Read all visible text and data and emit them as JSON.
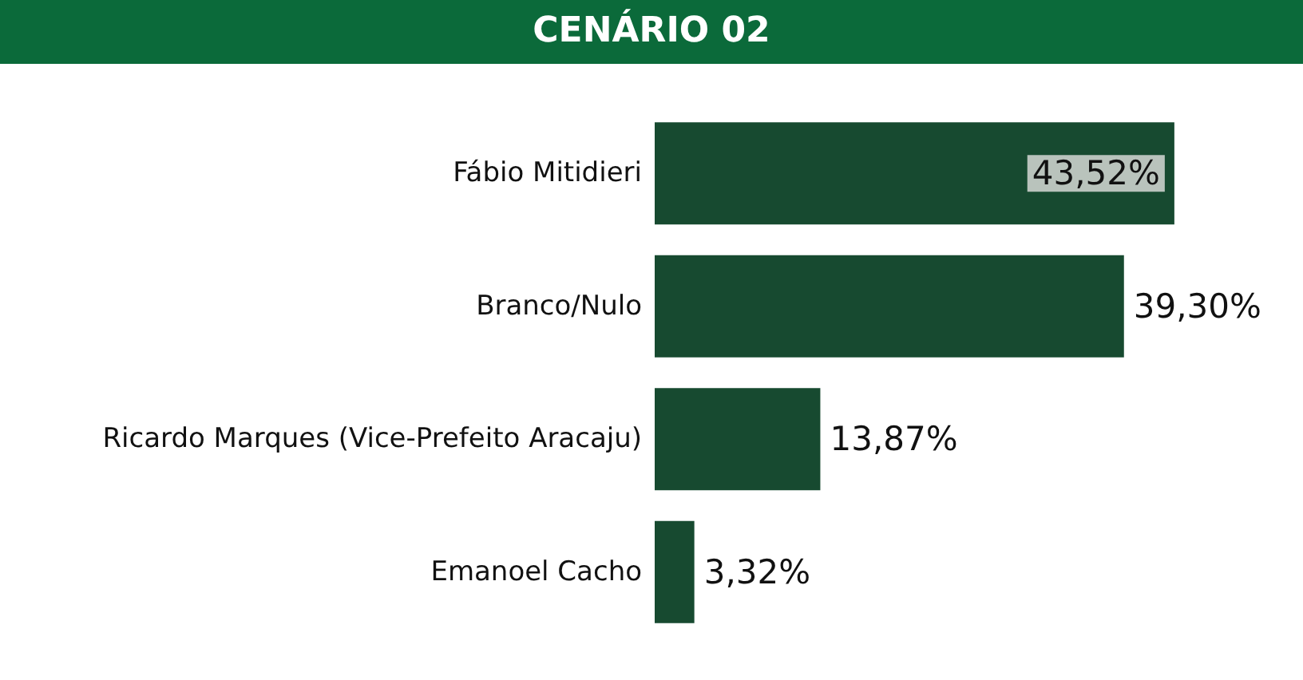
{
  "chart_data": {
    "type": "bar",
    "title": "CENÁRIO 02",
    "orientation": "horizontal",
    "categories": [
      "Fábio Mitidieri",
      "Branco/Nulo",
      "Ricardo Marques (Vice-Prefeito Aracaju)",
      "Emanoel Cacho"
    ],
    "values": [
      43.52,
      39.3,
      13.87,
      3.32
    ],
    "value_labels": [
      "43,52%",
      "39,30%",
      "13,87%",
      "3,32%"
    ],
    "color": "#174a30"
  }
}
